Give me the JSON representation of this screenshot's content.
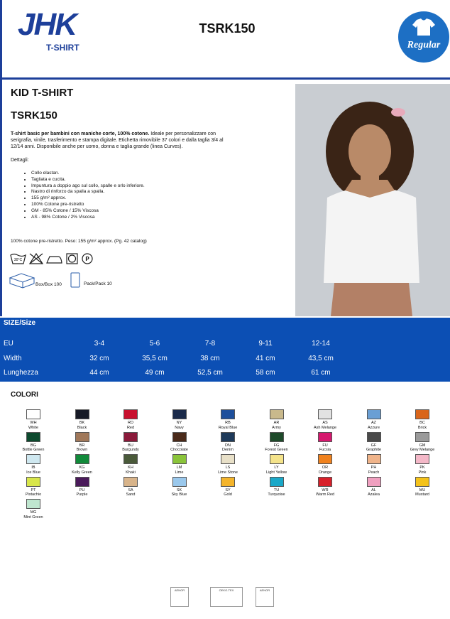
{
  "header": {
    "logo": "JHK",
    "logo_sub": "T-SHIRT",
    "code": "TSRK150",
    "badge": "Regular"
  },
  "product": {
    "title": "KID T-SHIRT",
    "code": "TSRK150",
    "desc_bold": "T-shirt basic per bambini con maniche corte, 100% cotone.",
    "desc_rest": " Ideale per personalizzare con serigrafia, vinile, trasferimento e stampa digitale. Etichetta rimovibile 37 colori e dalla taglia 3/4 al 12/14 anni. Disponibile anche per uomo, donna e taglia grande (linea Curves).",
    "details_label": "Dettagli:",
    "details": [
      "Collo elastan.",
      "Tagliata e cucita.",
      "Impuntura a doppio ago sul collo, spalle e orlo inferiore.",
      "Nastro di rinforzo da spalla a spalla.",
      "155 g/m² approx.",
      "100% Cotone pre-ristretto",
      "GM - 85% Cotone / 15% Viscosa",
      "AS - 98% Cotone / 2% Viscosa"
    ],
    "composition": "100% cotone pre-ristretto. Peso: 155 g/m² approx. (Pg. 42 catalog)",
    "wash_temp": "30°C",
    "box": "Box/Box 100",
    "pack": "Pack/Pack 10"
  },
  "size_table": {
    "title": "SIZE/Size",
    "rows": [
      [
        "EU",
        "3-4",
        "5-6",
        "7-8",
        "9-11",
        "12-14"
      ],
      [
        "Width",
        "32 cm",
        "35,5 cm",
        "38 cm",
        "41 cm",
        "43,5 cm"
      ],
      [
        "Lunghezza",
        "44 cm",
        "49 cm",
        "52,5 cm",
        "58 cm",
        "61 cm"
      ]
    ]
  },
  "colors": {
    "title": "COLORI",
    "items": [
      {
        "code": "WH",
        "name": "White",
        "color": "#ffffff"
      },
      {
        "code": "BK",
        "name": "Black",
        "color": "#161a26"
      },
      {
        "code": "RD",
        "name": "Red",
        "color": "#c8102e"
      },
      {
        "code": "NY",
        "name": "Navy",
        "color": "#1b2a4a"
      },
      {
        "code": "RB",
        "name": "Royal Blue",
        "color": "#1d4f9c"
      },
      {
        "code": "AR",
        "name": "Army",
        "color": "#c9b98c"
      },
      {
        "code": "AS",
        "name": "Ash Melange",
        "color": "#e2e2e2"
      },
      {
        "code": "AZ",
        "name": "Azzure",
        "color": "#6a9fd4"
      },
      {
        "code": "BC",
        "name": "Brick",
        "color": "#d9651a"
      },
      {
        "code": "BG",
        "name": "Bottle Green",
        "color": "#0d4a2e"
      },
      {
        "code": "BR",
        "name": "Brown",
        "color": "#a0785a"
      },
      {
        "code": "BU",
        "name": "Burgundy",
        "color": "#8a1a3a"
      },
      {
        "code": "CH",
        "name": "Chocolate",
        "color": "#4a2a1a"
      },
      {
        "code": "DN",
        "name": "Denim",
        "color": "#1e3a5a"
      },
      {
        "code": "FG",
        "name": "Forest Green",
        "color": "#1e4a2a"
      },
      {
        "code": "FU",
        "name": "Fucsia",
        "color": "#d6186e"
      },
      {
        "code": "GF",
        "name": "Graphite",
        "color": "#4a4a4a"
      },
      {
        "code": "GM",
        "name": "Grey Melange",
        "color": "#9a9a9a"
      },
      {
        "code": "IB",
        "name": "Ice Blue",
        "color": "#cfe8f0"
      },
      {
        "code": "KG",
        "name": "Kelly Green",
        "color": "#118a3a"
      },
      {
        "code": "KH",
        "name": "Khaki",
        "color": "#4a5a3a"
      },
      {
        "code": "LM",
        "name": "Lime",
        "color": "#8ac43a"
      },
      {
        "code": "LS",
        "name": "Lime Stone",
        "color": "#e8e0c8"
      },
      {
        "code": "LY",
        "name": "Light Yellow",
        "color": "#f4e38a"
      },
      {
        "code": "OR",
        "name": "Orange",
        "color": "#f0821e"
      },
      {
        "code": "PH",
        "name": "Peach",
        "color": "#f0b48a"
      },
      {
        "code": "PK",
        "name": "Pink",
        "color": "#f4b8c8"
      },
      {
        "code": "PT",
        "name": "Pistachio",
        "color": "#d8e64a"
      },
      {
        "code": "PU",
        "name": "Purple",
        "color": "#4a1a5a"
      },
      {
        "code": "SA",
        "name": "Sand",
        "color": "#d8b48a"
      },
      {
        "code": "SK",
        "name": "Sky Blue",
        "color": "#9ac8ec"
      },
      {
        "code": "SY",
        "name": "Gold",
        "color": "#f4b42a"
      },
      {
        "code": "TU",
        "name": "Turquoise",
        "color": "#1aa8c8"
      },
      {
        "code": "WR",
        "name": "Warm Red",
        "color": "#d8202a"
      },
      {
        "code": "AL",
        "name": "Azalea",
        "color": "#f0a0c0"
      },
      {
        "code": "MU",
        "name": "Mustard",
        "color": "#f4c21a"
      },
      {
        "code": "MG",
        "name": "Mint Green",
        "color": "#bfe6cf"
      }
    ]
  },
  "certifications": [
    "AENOR",
    "OEKO-TEX",
    "AENOR"
  ]
}
